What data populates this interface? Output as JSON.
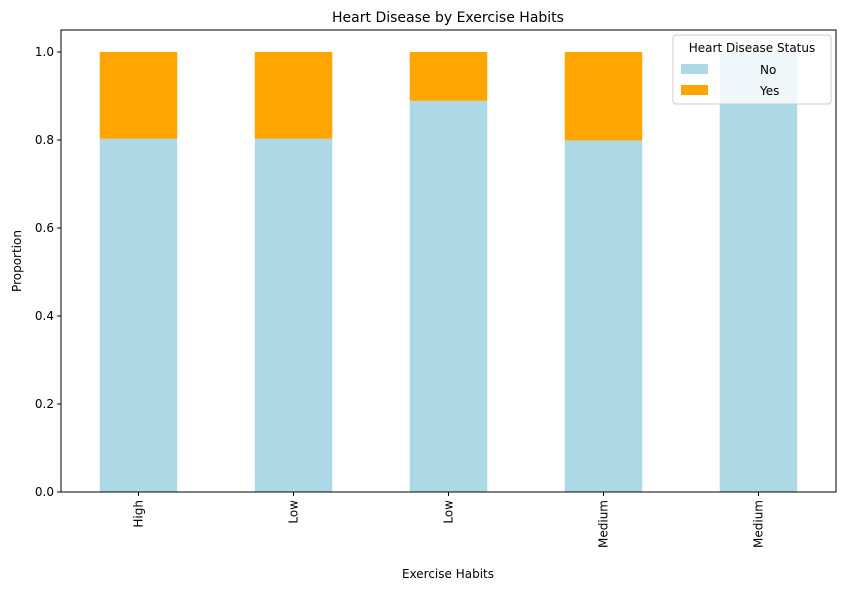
{
  "chart_data": {
    "type": "bar",
    "stacked": true,
    "title": "Heart Disease by Exercise Habits",
    "xlabel": "Exercise Habits",
    "ylabel": "Proportion",
    "categories": [
      "High",
      "Low",
      "Low",
      "Medium",
      "Medium"
    ],
    "series": [
      {
        "name": "No",
        "color": "#add8e6",
        "values": [
          0.803,
          0.803,
          0.889,
          0.799,
          1.0
        ]
      },
      {
        "name": "Yes",
        "color": "#ffa500",
        "values": [
          0.197,
          0.197,
          0.111,
          0.201,
          0.0
        ]
      }
    ],
    "ylim": [
      0,
      1.05
    ],
    "yticks": [
      0.0,
      0.2,
      0.4,
      0.6,
      0.8,
      1.0
    ],
    "ytick_labels": [
      "0.0",
      "0.2",
      "0.4",
      "0.6",
      "0.8",
      "1.0"
    ],
    "grid": false,
    "legend": {
      "title": "Heart Disease Status",
      "position": "top-right"
    }
  }
}
